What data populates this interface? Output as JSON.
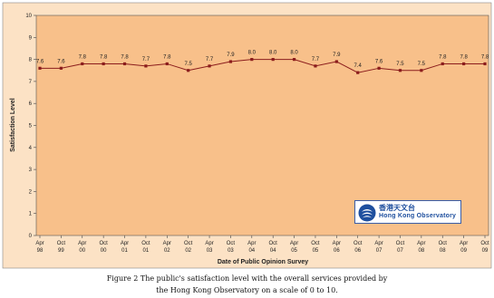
{
  "chart_data": {
    "type": "line",
    "title": "",
    "xlabel": "Date of Public Opinion Survey",
    "ylabel": "Satisfaction Level",
    "ylim": [
      0,
      10
    ],
    "yticks": [
      0,
      1,
      2,
      3,
      4,
      5,
      6,
      7,
      8,
      9,
      10
    ],
    "grid": false,
    "legend": "none",
    "categories": [
      [
        "Apr",
        "98"
      ],
      [
        "Oct",
        "99"
      ],
      [
        "Apr",
        "00"
      ],
      [
        "Oct",
        "00"
      ],
      [
        "Apr",
        "01"
      ],
      [
        "Oct",
        "01"
      ],
      [
        "Apr",
        "02"
      ],
      [
        "Oct",
        "02"
      ],
      [
        "Apr",
        "03"
      ],
      [
        "Oct",
        "03"
      ],
      [
        "Apr",
        "04"
      ],
      [
        "Oct",
        "04"
      ],
      [
        "Apr",
        "05"
      ],
      [
        "Oct",
        "05"
      ],
      [
        "Apr",
        "06"
      ],
      [
        "Oct",
        "06"
      ],
      [
        "Apr",
        "07"
      ],
      [
        "Oct",
        "07"
      ],
      [
        "Apr",
        "08"
      ],
      [
        "Oct",
        "08"
      ],
      [
        "Apr",
        "09"
      ],
      [
        "Oct",
        "09"
      ]
    ],
    "series": [
      {
        "values": [
          7.6,
          7.6,
          7.8,
          7.8,
          7.8,
          7.7,
          7.8,
          7.5,
          7.7,
          7.9,
          8.0,
          8.0,
          8.0,
          7.7,
          7.9,
          7.4,
          7.6,
          7.5,
          7.5,
          7.8,
          7.8,
          7.8
        ],
        "labels": [
          "7.6",
          "7.6",
          "7.8",
          "7.8",
          "7.8",
          "7.7",
          "7.8",
          "7.5",
          "7.7",
          "7.9",
          "8.0",
          "8.0",
          "8.0",
          "7.7",
          "7.9",
          "7.4",
          "7.6",
          "7.5",
          "7.5",
          "7.8",
          "7.8",
          "7.8"
        ]
      }
    ],
    "colors": {
      "plot_background": "#f8c08a",
      "frame_background": "#fce2c5",
      "line": "#8b1c1c",
      "marker": "#8b1c1c"
    }
  },
  "logo": {
    "chinese": "香港天文台",
    "english": "Hong Kong Observatory",
    "brand_color": "#1e4f9e"
  },
  "caption": {
    "line1": "Figure 2   The public's satisfaction level with the overall services provided by",
    "line2": "the Hong Kong Observatory on a scale of 0 to 10."
  }
}
